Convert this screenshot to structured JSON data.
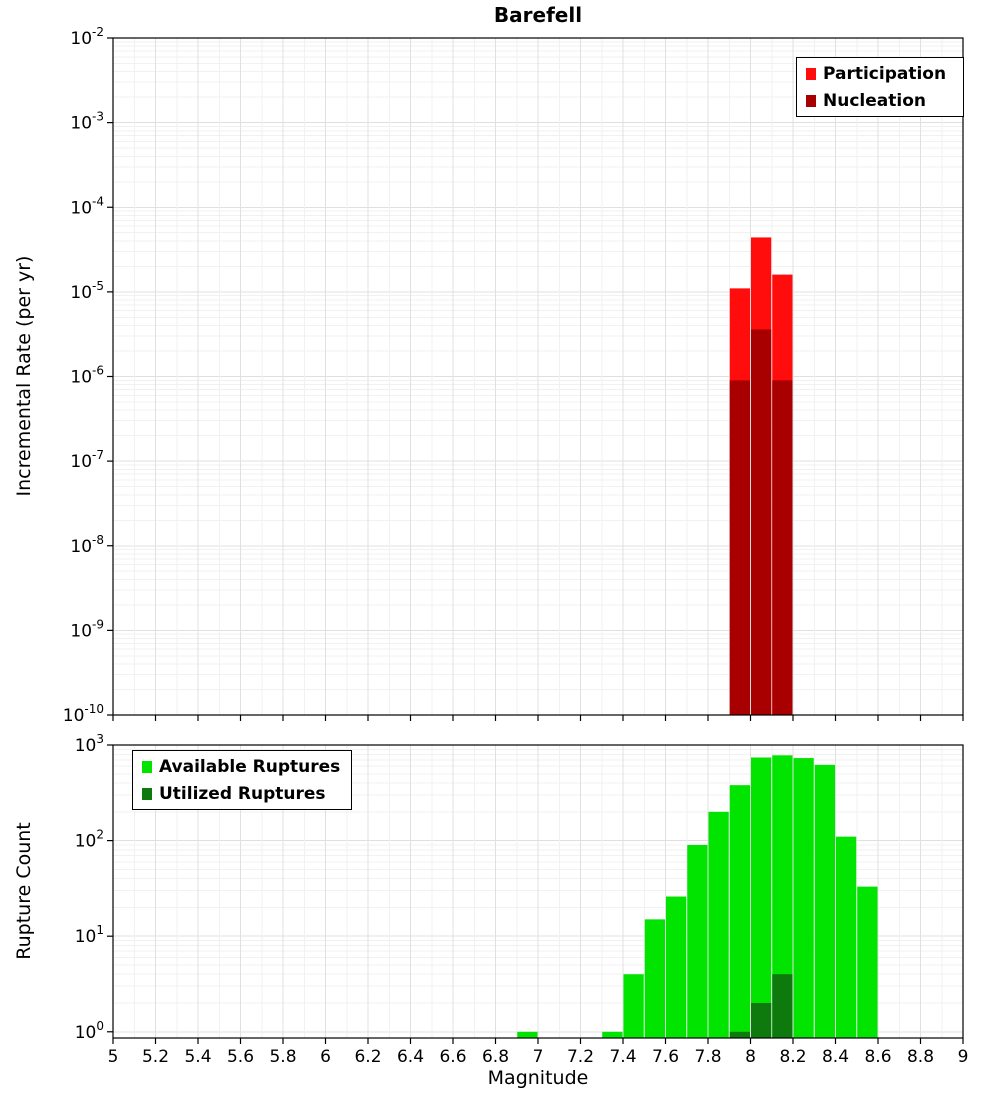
{
  "title": "Barefell",
  "xlabel": "Magnitude",
  "x_axis": {
    "min": 5,
    "max": 9,
    "major_step": 0.2,
    "minor_step": 0.1,
    "tick_labels": [
      "5",
      "5.2",
      "5.4",
      "5.6",
      "5.8",
      "6",
      "6.2",
      "6.4",
      "6.6",
      "6.8",
      "7",
      "7.2",
      "7.4",
      "7.6",
      "7.8",
      "8",
      "8.2",
      "8.4",
      "8.6",
      "8.8",
      "9"
    ]
  },
  "colors": {
    "participation": "#ff0d0d",
    "nucleation": "#a80000",
    "available": "#00e400",
    "utilized": "#0e7a0e",
    "grid_major": "#e0e0e0",
    "grid_minor": "#f1f1f1",
    "axis": "#000000"
  },
  "chart_data": [
    {
      "type": "bar",
      "title": "",
      "ylabel": "Incremental Rate (per yr)",
      "y_scale": "log",
      "ylim": [
        1e-10,
        0.01
      ],
      "y_tick_exponents": [
        -2,
        -3,
        -4,
        -5,
        -6,
        -7,
        -8,
        -9,
        -10
      ],
      "x_bin_width": 0.1,
      "grid": true,
      "legend": {
        "position": "top-right",
        "entries": [
          {
            "label": "Participation",
            "color": "#ff0d0d"
          },
          {
            "label": "Nucleation",
            "color": "#a80000"
          }
        ]
      },
      "series": [
        {
          "name": "Participation",
          "color": "#ff0d0d",
          "x": [
            7.95,
            8.05,
            8.15
          ],
          "values": [
            1.1e-05,
            4.4e-05,
            1.6e-05
          ]
        },
        {
          "name": "Nucleation",
          "color": "#a80000",
          "x": [
            7.95,
            8.05,
            8.15
          ],
          "values": [
            9e-07,
            3.6e-06,
            9e-07
          ]
        }
      ]
    },
    {
      "type": "bar",
      "title": "",
      "ylabel": "Rupture Count",
      "y_scale": "log",
      "ylim": [
        1,
        1000
      ],
      "y_tick_exponents": [
        3,
        2,
        1,
        0
      ],
      "x_bin_width": 0.1,
      "grid": true,
      "legend": {
        "position": "top-left",
        "entries": [
          {
            "label": "Available Ruptures",
            "color": "#00e400"
          },
          {
            "label": "Utilized Ruptures",
            "color": "#0e7a0e"
          }
        ]
      },
      "series": [
        {
          "name": "Available Ruptures",
          "color": "#00e400",
          "x": [
            6.95,
            7.35,
            7.45,
            7.55,
            7.65,
            7.75,
            7.85,
            7.95,
            8.05,
            8.15,
            8.25,
            8.35,
            8.45,
            8.55
          ],
          "values": [
            1,
            1,
            4,
            15,
            26,
            90,
            200,
            380,
            740,
            780,
            730,
            620,
            110,
            33
          ]
        },
        {
          "name": "Utilized Ruptures",
          "color": "#0e7a0e",
          "x": [
            7.95,
            8.05,
            8.15
          ],
          "values": [
            1,
            2,
            4
          ]
        }
      ]
    }
  ]
}
